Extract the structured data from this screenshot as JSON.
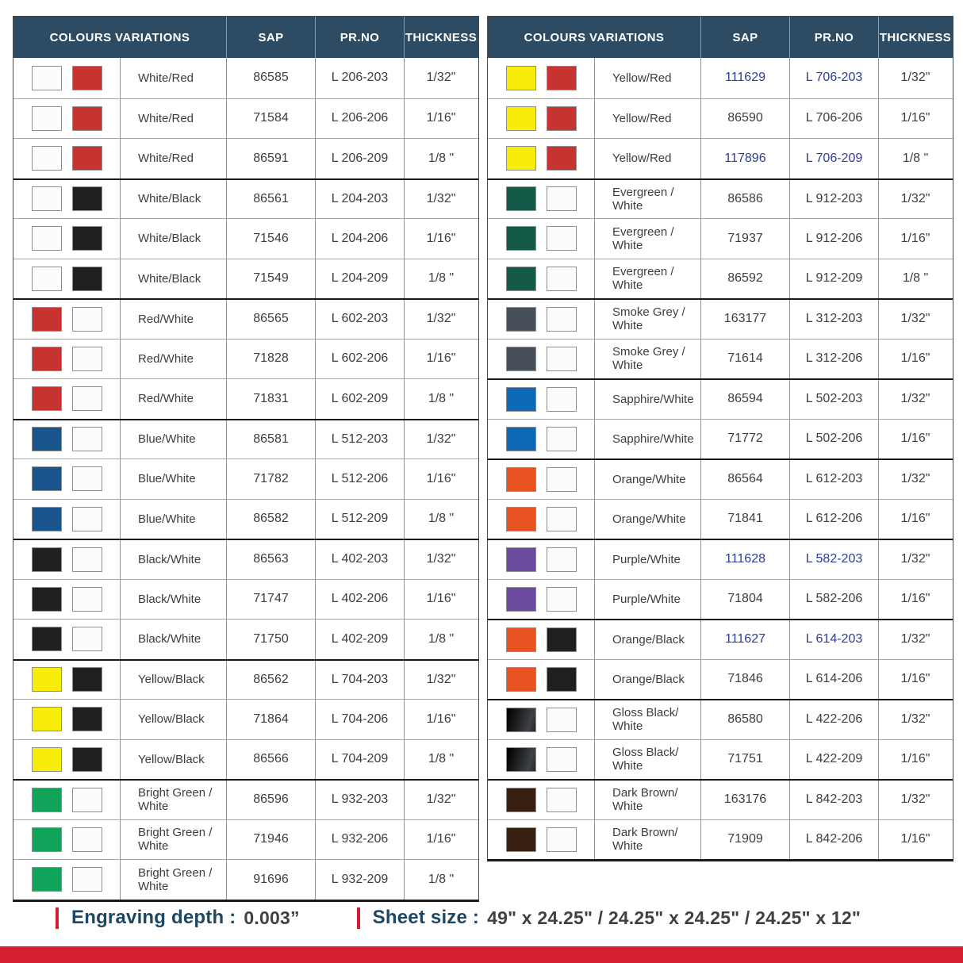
{
  "columns": [
    "COLOURS VARIATIONS",
    "SAP",
    "PR.NO",
    "THICKNESS"
  ],
  "palette": {
    "white": "#fcfcfc",
    "red": "#c63331",
    "black": "#221f20",
    "blue": "#1a548c",
    "yellow": "#f8ec0b",
    "bright_green": "#10a35a",
    "evergreen": "#155948",
    "smoke_grey": "#474f58",
    "sapphire": "#0e68b6",
    "orange": "#e65321",
    "purple": "#6a4a9e",
    "gloss_black": "linear-gradient(105deg,#050505 10%,#3f4246 78%,#23262a 100%)",
    "dark_brown": "#371f12"
  },
  "colors": {
    "header_bg": "#2d4c63",
    "link_blue": "#2d3c96",
    "accent_red": "#cf202f",
    "bar_red": "#d31f30",
    "footer_label": "#1d4763"
  },
  "tables": [
    {
      "side": "left",
      "rows": [
        {
          "colors": [
            "white",
            "red"
          ],
          "name": "White/Red",
          "sap": "86585",
          "pr": "L 206-203",
          "thickness": "1/32\"",
          "link": false,
          "group_start": true
        },
        {
          "colors": [
            "white",
            "red"
          ],
          "name": "White/Red",
          "sap": "71584",
          "pr": "L 206-206",
          "thickness": "1/16\"",
          "link": false,
          "group_start": false
        },
        {
          "colors": [
            "white",
            "red"
          ],
          "name": "White/Red",
          "sap": "86591",
          "pr": "L 206-209",
          "thickness": "1/8 \"",
          "link": false,
          "group_start": false
        },
        {
          "colors": [
            "white",
            "black"
          ],
          "name": "White/Black",
          "sap": "86561",
          "pr": "L 204-203",
          "thickness": "1/32\"",
          "link": false,
          "group_start": true
        },
        {
          "colors": [
            "white",
            "black"
          ],
          "name": "White/Black",
          "sap": "71546",
          "pr": "L 204-206",
          "thickness": "1/16\"",
          "link": false,
          "group_start": false
        },
        {
          "colors": [
            "white",
            "black"
          ],
          "name": "White/Black",
          "sap": "71549",
          "pr": "L 204-209",
          "thickness": "1/8 \"",
          "link": false,
          "group_start": false
        },
        {
          "colors": [
            "red",
            "white"
          ],
          "name": "Red/White",
          "sap": "86565",
          "pr": "L 602-203",
          "thickness": "1/32\"",
          "link": false,
          "group_start": true
        },
        {
          "colors": [
            "red",
            "white"
          ],
          "name": "Red/White",
          "sap": "71828",
          "pr": "L 602-206",
          "thickness": "1/16\"",
          "link": false,
          "group_start": false
        },
        {
          "colors": [
            "red",
            "white"
          ],
          "name": "Red/White",
          "sap": "71831",
          "pr": "L 602-209",
          "thickness": "1/8 \"",
          "link": false,
          "group_start": false
        },
        {
          "colors": [
            "blue",
            "white"
          ],
          "name": "Blue/White",
          "sap": "86581",
          "pr": "L 512-203",
          "thickness": "1/32\"",
          "link": false,
          "group_start": true
        },
        {
          "colors": [
            "blue",
            "white"
          ],
          "name": "Blue/White",
          "sap": "71782",
          "pr": "L 512-206",
          "thickness": "1/16\"",
          "link": false,
          "group_start": false
        },
        {
          "colors": [
            "blue",
            "white"
          ],
          "name": "Blue/White",
          "sap": "86582",
          "pr": "L 512-209",
          "thickness": "1/8 \"",
          "link": false,
          "group_start": false
        },
        {
          "colors": [
            "black",
            "white"
          ],
          "name": "Black/White",
          "sap": "86563",
          "pr": "L 402-203",
          "thickness": "1/32\"",
          "link": false,
          "group_start": true
        },
        {
          "colors": [
            "black",
            "white"
          ],
          "name": "Black/White",
          "sap": "71747",
          "pr": "L 402-206",
          "thickness": "1/16\"",
          "link": false,
          "group_start": false
        },
        {
          "colors": [
            "black",
            "white"
          ],
          "name": "Black/White",
          "sap": "71750",
          "pr": "L 402-209",
          "thickness": "1/8 \"",
          "link": false,
          "group_start": false
        },
        {
          "colors": [
            "yellow",
            "black"
          ],
          "name": "Yellow/Black",
          "sap": "86562",
          "pr": "L 704-203",
          "thickness": "1/32\"",
          "link": false,
          "group_start": true
        },
        {
          "colors": [
            "yellow",
            "black"
          ],
          "name": "Yellow/Black",
          "sap": "71864",
          "pr": "L 704-206",
          "thickness": "1/16\"",
          "link": false,
          "group_start": false
        },
        {
          "colors": [
            "yellow",
            "black"
          ],
          "name": "Yellow/Black",
          "sap": "86566",
          "pr": "L 704-209",
          "thickness": "1/8 \"",
          "link": false,
          "group_start": false
        },
        {
          "colors": [
            "bright_green",
            "white"
          ],
          "name": "Bright Green /\nWhite",
          "sap": "86596",
          "pr": "L 932-203",
          "thickness": "1/32\"",
          "link": false,
          "group_start": true
        },
        {
          "colors": [
            "bright_green",
            "white"
          ],
          "name": "Bright Green /\nWhite",
          "sap": "71946",
          "pr": "L 932-206",
          "thickness": "1/16\"",
          "link": false,
          "group_start": false
        },
        {
          "colors": [
            "bright_green",
            "white"
          ],
          "name": "Bright Green /\nWhite",
          "sap": "91696",
          "pr": "L 932-209",
          "thickness": "1/8 \"",
          "link": false,
          "group_start": false
        }
      ]
    },
    {
      "side": "right",
      "rows": [
        {
          "colors": [
            "yellow",
            "red"
          ],
          "name": "Yellow/Red",
          "sap": "111629",
          "pr": "L 706-203",
          "thickness": "1/32\"",
          "link": true,
          "group_start": true
        },
        {
          "colors": [
            "yellow",
            "red"
          ],
          "name": "Yellow/Red",
          "sap": "86590",
          "pr": "L 706-206",
          "thickness": "1/16\"",
          "link": false,
          "group_start": false
        },
        {
          "colors": [
            "yellow",
            "red"
          ],
          "name": "Yellow/Red",
          "sap": "117896",
          "pr": "L 706-209",
          "thickness": "1/8 \"",
          "link": true,
          "group_start": false
        },
        {
          "colors": [
            "evergreen",
            "white"
          ],
          "name": "Evergreen /\nWhite",
          "sap": "86586",
          "pr": "L 912-203",
          "thickness": "1/32\"",
          "link": false,
          "group_start": true
        },
        {
          "colors": [
            "evergreen",
            "white"
          ],
          "name": "Evergreen /\nWhite",
          "sap": "71937",
          "pr": "L 912-206",
          "thickness": "1/16\"",
          "link": false,
          "group_start": false
        },
        {
          "colors": [
            "evergreen",
            "white"
          ],
          "name": "Evergreen /\nWhite",
          "sap": "86592",
          "pr": "L 912-209",
          "thickness": "1/8 \"",
          "link": false,
          "group_start": false
        },
        {
          "colors": [
            "smoke_grey",
            "white"
          ],
          "name": "Smoke Grey /\nWhite",
          "sap": "163177",
          "pr": "L 312-203",
          "thickness": "1/32\"",
          "link": false,
          "group_start": true
        },
        {
          "colors": [
            "smoke_grey",
            "white"
          ],
          "name": "Smoke Grey /\nWhite",
          "sap": "71614",
          "pr": "L 312-206",
          "thickness": "1/16\"",
          "link": false,
          "group_start": false
        },
        {
          "colors": [
            "sapphire",
            "white"
          ],
          "name": "Sapphire/White",
          "sap": "86594",
          "pr": "L 502-203",
          "thickness": "1/32\"",
          "link": false,
          "group_start": true
        },
        {
          "colors": [
            "sapphire",
            "white"
          ],
          "name": "Sapphire/White",
          "sap": "71772",
          "pr": "L 502-206",
          "thickness": "1/16\"",
          "link": false,
          "group_start": false
        },
        {
          "colors": [
            "orange",
            "white"
          ],
          "name": "Orange/White",
          "sap": "86564",
          "pr": "L 612-203",
          "thickness": "1/32\"",
          "link": false,
          "group_start": true
        },
        {
          "colors": [
            "orange",
            "white"
          ],
          "name": "Orange/White",
          "sap": "71841",
          "pr": "L 612-206",
          "thickness": "1/16\"",
          "link": false,
          "group_start": false
        },
        {
          "colors": [
            "purple",
            "white"
          ],
          "name": "Purple/White",
          "sap": "111628",
          "pr": "L 582-203",
          "thickness": "1/32\"",
          "link": true,
          "group_start": true
        },
        {
          "colors": [
            "purple",
            "white"
          ],
          "name": "Purple/White",
          "sap": "71804",
          "pr": "L 582-206",
          "thickness": "1/16\"",
          "link": false,
          "group_start": false
        },
        {
          "colors": [
            "orange",
            "black"
          ],
          "name": "Orange/Black",
          "sap": "111627",
          "pr": "L 614-203",
          "thickness": "1/32\"",
          "link": true,
          "group_start": true
        },
        {
          "colors": [
            "orange",
            "black"
          ],
          "name": "Orange/Black",
          "sap": "71846",
          "pr": "L 614-206",
          "thickness": "1/16\"",
          "link": false,
          "group_start": false
        },
        {
          "colors": [
            "gloss_black",
            "white"
          ],
          "name": "Gloss Black/\nWhite",
          "sap": "86580",
          "pr": "L 422-206",
          "thickness": "1/32\"",
          "link": false,
          "group_start": true
        },
        {
          "colors": [
            "gloss_black",
            "white"
          ],
          "name": "Gloss Black/\nWhite",
          "sap": "71751",
          "pr": "L 422-209",
          "thickness": "1/16\"",
          "link": false,
          "group_start": false
        },
        {
          "colors": [
            "dark_brown",
            "white"
          ],
          "name": "Dark Brown/\nWhite",
          "sap": "163176",
          "pr": "L 842-203",
          "thickness": "1/32\"",
          "link": false,
          "group_start": true
        },
        {
          "colors": [
            "dark_brown",
            "white"
          ],
          "name": "Dark Brown/\nWhite",
          "sap": "71909",
          "pr": "L 842-206",
          "thickness": "1/16\"",
          "link": false,
          "group_start": false
        }
      ]
    }
  ],
  "footer": {
    "engraving_label": "Engraving depth :",
    "engraving_value": "0.003”",
    "sheet_label": "Sheet size :",
    "sheet_value": "49\" x 24.25\" / 24.25\" x 24.25\" / 24.25\" x 12\""
  }
}
